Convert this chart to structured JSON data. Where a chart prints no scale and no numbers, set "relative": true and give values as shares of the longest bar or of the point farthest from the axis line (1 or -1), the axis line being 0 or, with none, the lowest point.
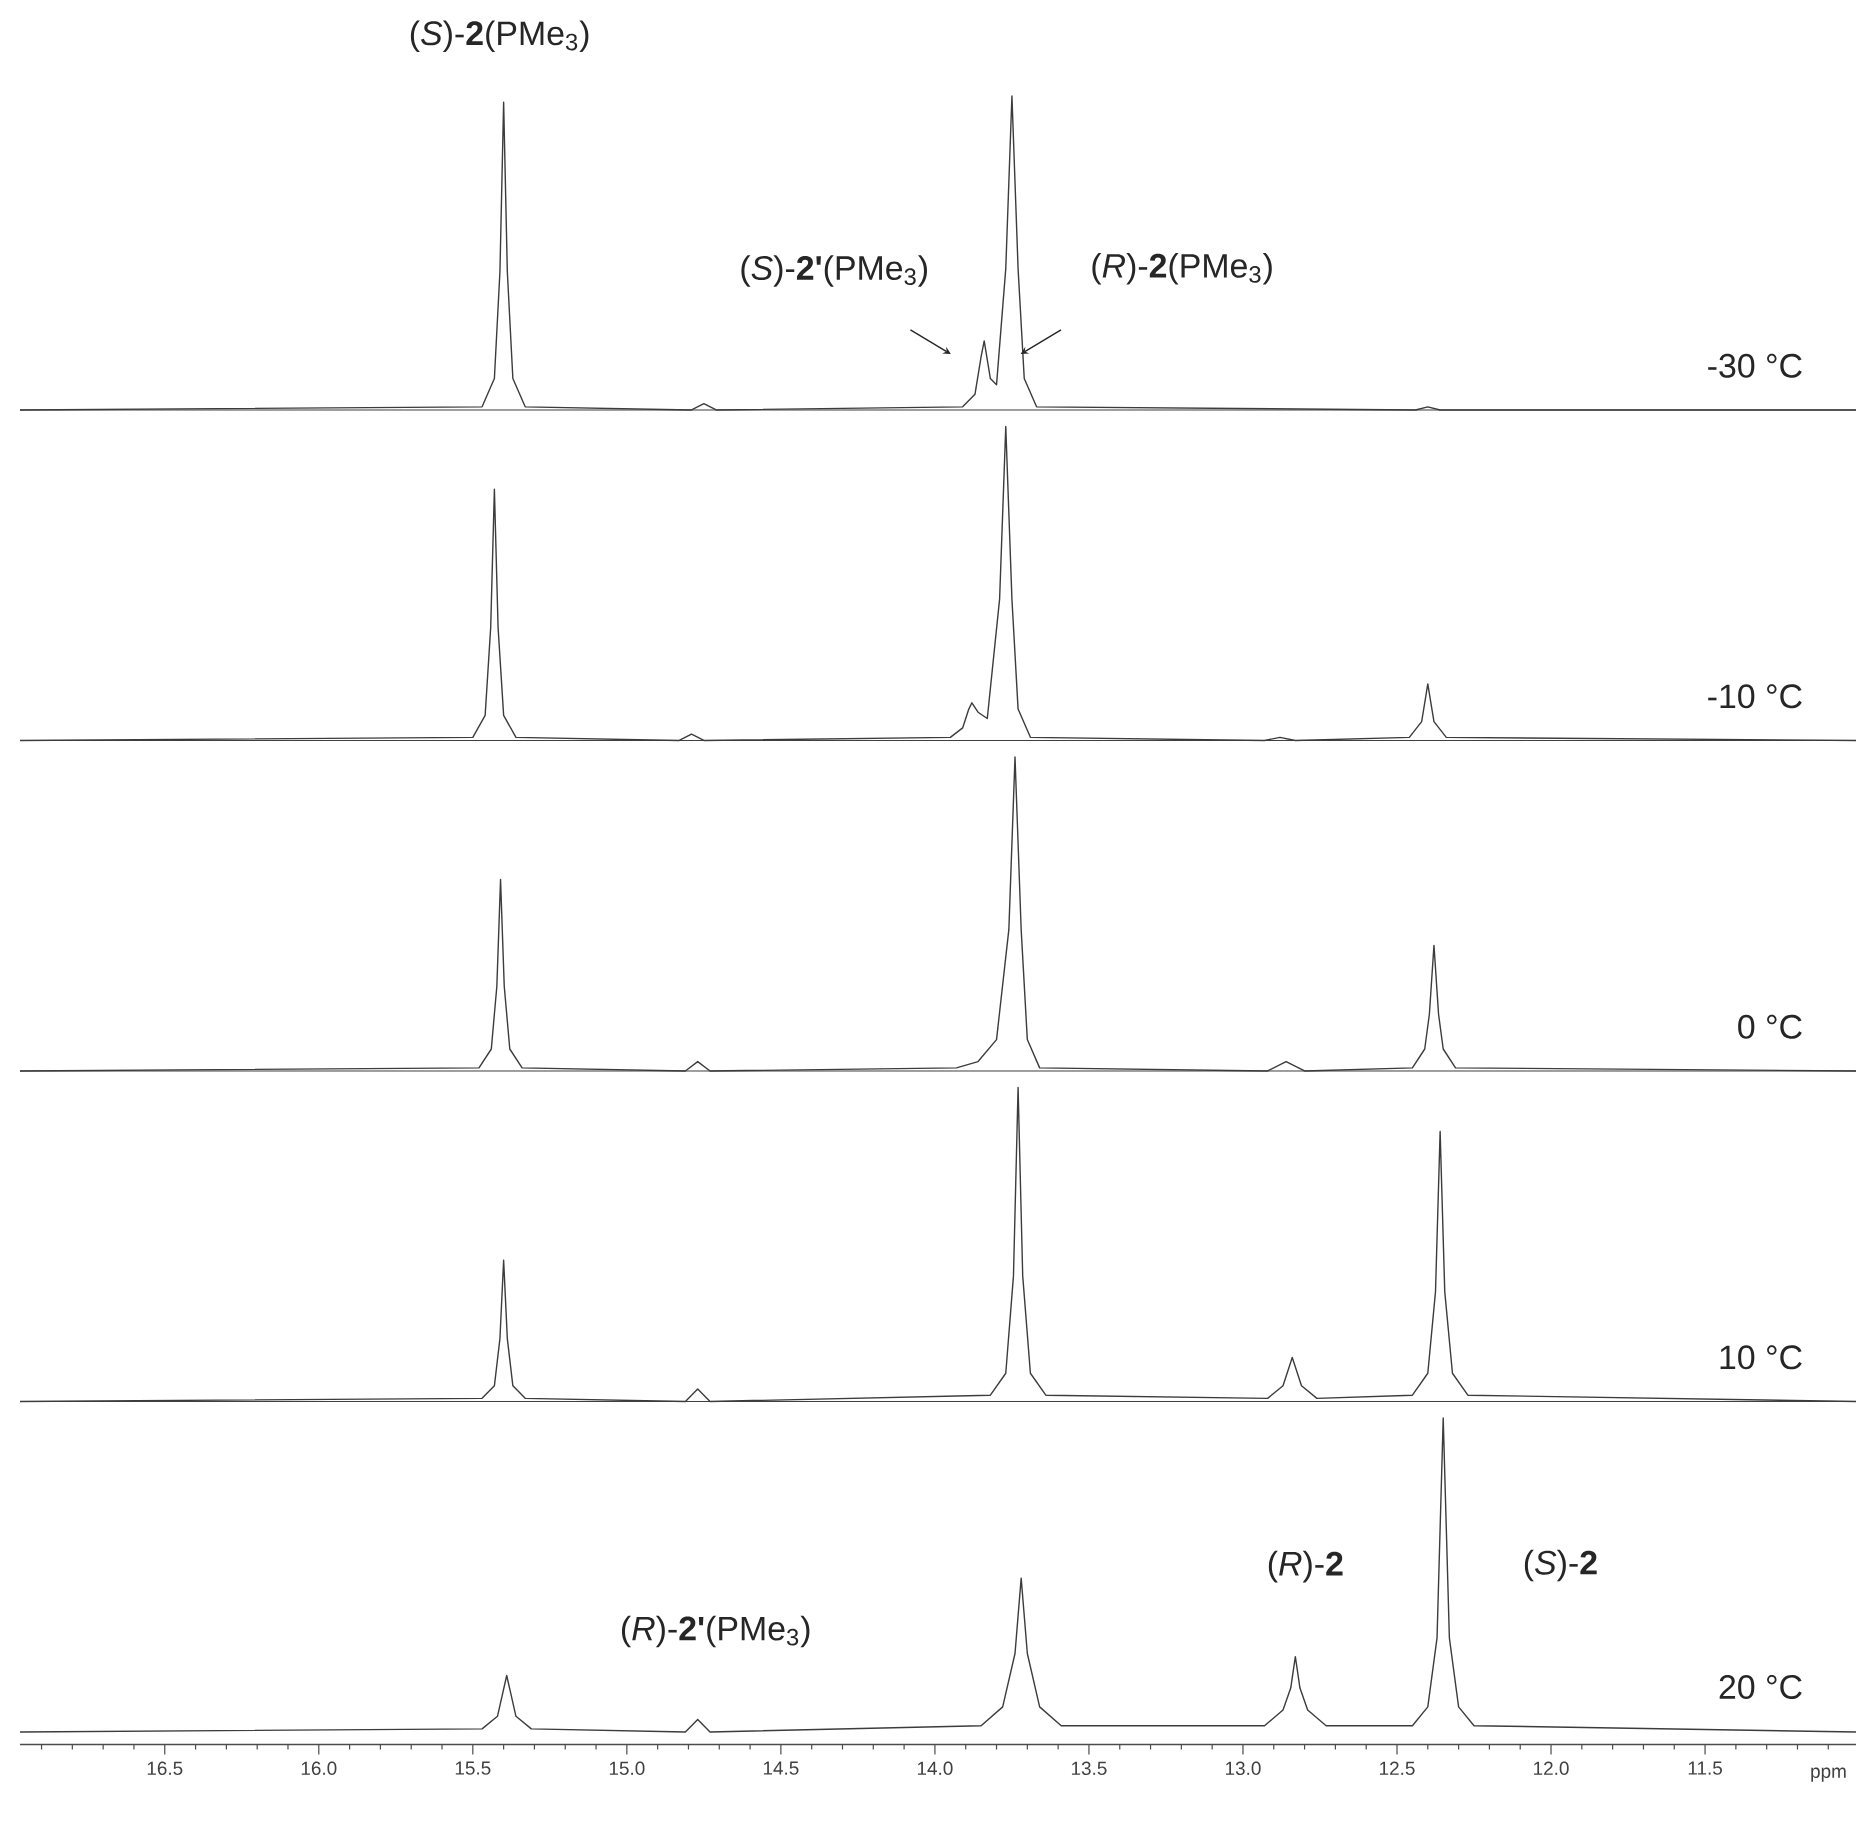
{
  "chart_data": [
    {
      "type": "line",
      "relative": true,
      "xlim": [
        16.97,
        11.01
      ],
      "tick_labels": false,
      "annotations": [
        {
          "text": "(*S*)-**2**(PMe$_{3}$)",
          "x": 15.4,
          "y": 0.98
        },
        {
          "text": "(*S*)-**2'**(PMe$_{3}$)",
          "x": 13.84,
          "y": 0.22
        },
        {
          "text": "(*R*)-**2**(PMe$_{3}$)",
          "x": 13.73,
          "y": 0.45
        }
      ],
      "series": [
        {
          "name": "-30 °C",
          "color": "#3c3c3c",
          "x": [
            16.97,
            15.47,
            15.43,
            15.412,
            15.4,
            15.388,
            15.37,
            15.33,
            14.79,
            14.75,
            14.71,
            13.91,
            13.87,
            13.85,
            13.84,
            13.82,
            13.8,
            13.77,
            13.75,
            13.73,
            13.71,
            13.67,
            12.44,
            12.4,
            12.36,
            11.01
          ],
          "values": [
            0,
            0.01,
            0.1,
            0.44,
            0.98,
            0.44,
            0.1,
            0.01,
            0,
            0.02,
            0,
            0.01,
            0.05,
            0.17,
            0.22,
            0.1,
            0.08,
            0.45,
            1,
            0.45,
            0.1,
            0.01,
            0,
            0.01,
            0,
            0
          ]
        }
      ]
    },
    {
      "type": "line",
      "relative": true,
      "xlim": [
        16.97,
        11.01
      ],
      "tick_labels": false,
      "series": [
        {
          "name": "-10 °C",
          "color": "#3c3c3c",
          "x": [
            16.97,
            15.5,
            15.46,
            15.442,
            15.43,
            15.418,
            15.4,
            15.36,
            14.83,
            14.79,
            14.75,
            13.95,
            13.91,
            13.89,
            13.88,
            13.86,
            13.83,
            13.79,
            13.77,
            13.75,
            13.73,
            13.69,
            12.93,
            12.88,
            12.83,
            12.46,
            12.42,
            12.41,
            12.4,
            12.39,
            12.38,
            12.34,
            11.01
          ],
          "values": [
            0,
            0.01,
            0.08,
            0.36,
            0.8,
            0.36,
            0.08,
            0.01,
            0,
            0.02,
            0,
            0.01,
            0.04,
            0.1,
            0.12,
            0.09,
            0.07,
            0.45,
            1,
            0.45,
            0.1,
            0.01,
            0,
            0.01,
            0,
            0.01,
            0.06,
            0.12,
            0.18,
            0.12,
            0.06,
            0.01,
            0
          ]
        }
      ]
    },
    {
      "type": "line",
      "relative": true,
      "xlim": [
        16.97,
        11.01
      ],
      "tick_labels": false,
      "series": [
        {
          "name": "0 °C",
          "color": "#3c3c3c",
          "x": [
            16.97,
            15.48,
            15.44,
            15.422,
            15.41,
            15.398,
            15.38,
            15.34,
            14.81,
            14.77,
            14.73,
            13.93,
            13.86,
            13.8,
            13.76,
            13.74,
            13.72,
            13.7,
            13.66,
            12.92,
            12.86,
            12.8,
            12.45,
            12.41,
            12.395,
            12.38,
            12.365,
            12.35,
            12.31,
            11.01
          ],
          "values": [
            0,
            0.01,
            0.07,
            0.27,
            0.61,
            0.27,
            0.07,
            0.01,
            0,
            0.03,
            0,
            0.01,
            0.03,
            0.1,
            0.45,
            1,
            0.45,
            0.1,
            0.01,
            0,
            0.03,
            0,
            0.01,
            0.07,
            0.18,
            0.4,
            0.18,
            0.07,
            0.01,
            0
          ]
        }
      ]
    },
    {
      "type": "line",
      "relative": true,
      "xlim": [
        16.97,
        11.01
      ],
      "tick_labels": false,
      "series": [
        {
          "name": "10 °C",
          "color": "#3c3c3c",
          "x": [
            16.97,
            15.47,
            15.43,
            15.412,
            15.4,
            15.388,
            15.37,
            15.33,
            14.81,
            14.77,
            14.73,
            13.82,
            13.77,
            13.745,
            13.73,
            13.715,
            13.69,
            13.64,
            12.92,
            12.87,
            12.84,
            12.81,
            12.76,
            12.45,
            12.4,
            12.375,
            12.36,
            12.345,
            12.32,
            12.27,
            11.01
          ],
          "values": [
            0,
            0.01,
            0.05,
            0.2,
            0.45,
            0.2,
            0.05,
            0.01,
            0,
            0.04,
            0,
            0.02,
            0.09,
            0.4,
            1,
            0.4,
            0.09,
            0.02,
            0.01,
            0.05,
            0.14,
            0.05,
            0.01,
            0.02,
            0.09,
            0.35,
            0.86,
            0.35,
            0.09,
            0.02,
            0
          ]
        }
      ]
    },
    {
      "type": "line",
      "relative": true,
      "xlim": [
        16.97,
        11.01
      ],
      "xlabel": "ppm",
      "xticks": [
        {
          "value": 16.9,
          "label": null
        },
        {
          "value": 16.8,
          "label": null
        },
        {
          "value": 16.7,
          "label": null
        },
        {
          "value": 16.6,
          "label": null
        },
        16.5,
        {
          "value": 16.4,
          "label": null
        },
        {
          "value": 16.3,
          "label": null
        },
        {
          "value": 16.2,
          "label": null
        },
        {
          "value": 16.1,
          "label": null
        },
        {
          "value": 16,
          "label": "16.0"
        },
        {
          "value": 15.9,
          "label": null
        },
        {
          "value": 15.8,
          "label": null
        },
        {
          "value": 15.7,
          "label": null
        },
        {
          "value": 15.6,
          "label": null
        },
        15.5,
        {
          "value": 15.4,
          "label": null
        },
        {
          "value": 15.3,
          "label": null
        },
        {
          "value": 15.2,
          "label": null
        },
        {
          "value": 15.1,
          "label": null
        },
        {
          "value": 15,
          "label": "15.0"
        },
        {
          "value": 14.9,
          "label": null
        },
        {
          "value": 14.8,
          "label": null
        },
        {
          "value": 14.7,
          "label": null
        },
        {
          "value": 14.6,
          "label": null
        },
        14.5,
        {
          "value": 14.4,
          "label": null
        },
        {
          "value": 14.3,
          "label": null
        },
        {
          "value": 14.2,
          "label": null
        },
        {
          "value": 14.1,
          "label": null
        },
        {
          "value": 14,
          "label": "14.0"
        },
        {
          "value": 13.9,
          "label": null
        },
        {
          "value": 13.8,
          "label": null
        },
        {
          "value": 13.7,
          "label": null
        },
        {
          "value": 13.6,
          "label": null
        },
        13.5,
        {
          "value": 13.4,
          "label": null
        },
        {
          "value": 13.3,
          "label": null
        },
        {
          "value": 13.2,
          "label": null
        },
        {
          "value": 13.1,
          "label": null
        },
        {
          "value": 13,
          "label": "13.0"
        },
        {
          "value": 12.9,
          "label": null
        },
        {
          "value": 12.8,
          "label": null
        },
        {
          "value": 12.7,
          "label": null
        },
        {
          "value": 12.6,
          "label": null
        },
        12.5,
        {
          "value": 12.4,
          "label": null
        },
        {
          "value": 12.3,
          "label": null
        },
        {
          "value": 12.2,
          "label": null
        },
        {
          "value": 12.1,
          "label": null
        },
        {
          "value": 12,
          "label": "12.0"
        },
        {
          "value": 11.9,
          "label": null
        },
        {
          "value": 11.8,
          "label": null
        },
        {
          "value": 11.7,
          "label": null
        },
        {
          "value": 11.6,
          "label": null
        },
        11.5,
        {
          "value": 11.4,
          "label": null
        },
        {
          "value": 11.3,
          "label": null
        },
        {
          "value": 11.2,
          "label": null
        },
        {
          "value": 11.1,
          "label": null
        }
      ],
      "annotations": [
        {
          "text": "(*R*)-**2'**(PMe$_{3}$)",
          "x": 14.77,
          "y": 0.04
        },
        {
          "text": "(*R*)-**2**",
          "x": 12.83,
          "y": 0.24
        },
        "(*S*)-**2**"
      ],
      "series": [
        {
          "name": "20 °C",
          "color": "#3c3c3c",
          "x": [
            16.97,
            15.47,
            15.42,
            15.39,
            15.36,
            15.31,
            14.81,
            14.77,
            14.73,
            13.85,
            13.78,
            13.74,
            13.72,
            13.7,
            13.66,
            13.59,
            12.93,
            12.87,
            12.845,
            12.83,
            12.815,
            12.79,
            12.73,
            12.45,
            12.4,
            12.37,
            12.35,
            12.33,
            12.3,
            12.25,
            11.01
          ],
          "values": [
            0,
            0.01,
            0.05,
            0.18,
            0.05,
            0.01,
            0,
            0.04,
            0,
            0.02,
            0.08,
            0.25,
            0.49,
            0.25,
            0.08,
            0.02,
            0.02,
            0.07,
            0.14,
            0.24,
            0.14,
            0.07,
            0.02,
            0.02,
            0.08,
            0.3,
            1,
            0.3,
            0.08,
            0.02,
            0
          ]
        }
      ]
    }
  ]
}
